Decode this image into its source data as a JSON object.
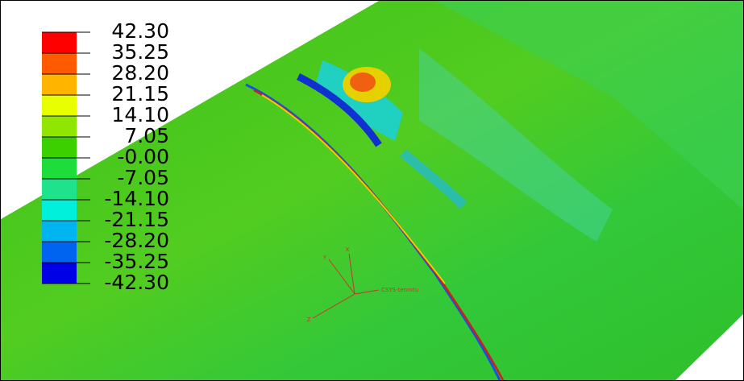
{
  "legend": {
    "levels": [
      "42.30",
      "35.25",
      "28.20",
      "21.15",
      "14.10",
      "7.05",
      "-0.00",
      "-7.05",
      "-14.10",
      "-21.15",
      "-28.20",
      "-35.25",
      "-42.30"
    ]
  },
  "triad": {
    "labels": [
      "Y",
      "X",
      "Z"
    ],
    "name": "CSYS-tenrotu"
  }
}
